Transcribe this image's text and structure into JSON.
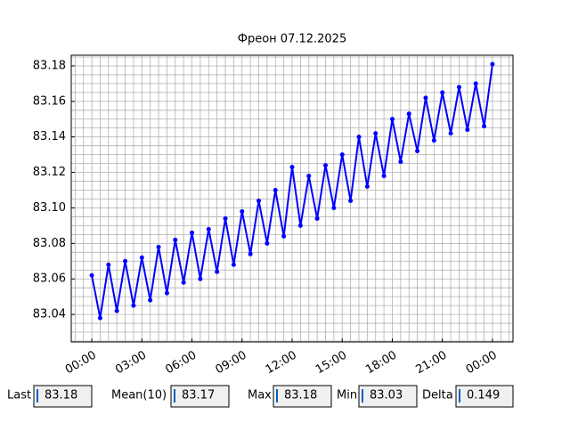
{
  "chart_data": {
    "type": "line",
    "title": "Фреон 07.12.2025",
    "x": [
      0,
      0.5,
      1,
      1.5,
      2,
      2.5,
      3,
      3.5,
      4,
      4.5,
      5,
      5.5,
      6,
      6.5,
      7,
      7.5,
      8,
      8.5,
      9,
      9.5,
      10,
      10.5,
      11,
      11.5,
      12,
      12.5,
      13,
      13.5,
      14,
      14.5,
      15,
      15.5,
      16,
      16.5,
      17,
      17.5,
      18,
      18.5,
      19,
      19.5,
      20,
      20.5,
      21,
      21.5,
      22,
      22.5,
      23,
      23.5,
      24
    ],
    "series": [
      {
        "color": "#0000ff",
        "values": [
          83.062,
          83.038,
          83.068,
          83.042,
          83.07,
          83.045,
          83.072,
          83.048,
          83.078,
          83.052,
          83.082,
          83.058,
          83.086,
          83.06,
          83.088,
          83.064,
          83.094,
          83.068,
          83.098,
          83.074,
          83.104,
          83.08,
          83.11,
          83.084,
          83.123,
          83.09,
          83.118,
          83.094,
          83.124,
          83.1,
          83.13,
          83.104,
          83.14,
          83.112,
          83.142,
          83.118,
          83.15,
          83.126,
          83.153,
          83.132,
          83.162,
          83.138,
          83.165,
          83.142,
          83.168,
          83.144,
          83.17,
          83.146,
          83.181
        ]
      }
    ],
    "xlim": [
      -1.23,
      25.23
    ],
    "ylim": [
      83.0245,
      83.186
    ],
    "xticks": [
      {
        "value": 0,
        "label": "00:00"
      },
      {
        "value": 3,
        "label": "03:00"
      },
      {
        "value": 6,
        "label": "06:00"
      },
      {
        "value": 9,
        "label": "09:00"
      },
      {
        "value": 12,
        "label": "12:00"
      },
      {
        "value": 15,
        "label": "15:00"
      },
      {
        "value": 18,
        "label": "18:00"
      },
      {
        "value": 21,
        "label": "21:00"
      },
      {
        "value": 24,
        "label": "00:00"
      }
    ],
    "yticks": [
      {
        "value": 83.04,
        "label": "83.04"
      },
      {
        "value": 83.06,
        "label": "83.06"
      },
      {
        "value": 83.08,
        "label": "83.08"
      },
      {
        "value": 83.1,
        "label": "83.10"
      },
      {
        "value": 83.12,
        "label": "83.12"
      },
      {
        "value": 83.14,
        "label": "83.14"
      },
      {
        "value": 83.16,
        "label": "83.16"
      },
      {
        "value": 83.18,
        "label": "83.18"
      }
    ],
    "xminorticks": [
      -1,
      -0.5,
      0,
      0.5,
      1,
      1.5,
      2,
      2.5,
      3,
      3.5,
      4,
      4.5,
      5,
      5.5,
      6,
      6.5,
      7,
      7.5,
      8,
      8.5,
      9,
      9.5,
      10,
      10.5,
      11,
      11.5,
      12,
      12.5,
      13,
      13.5,
      14,
      14.5,
      15,
      15.5,
      16,
      16.5,
      17,
      17.5,
      18,
      18.5,
      19,
      19.5,
      20,
      20.5,
      21,
      21.5,
      22,
      22.5,
      23,
      23.5,
      24,
      24.5,
      25
    ],
    "yminorticks": [
      83.025,
      83.03,
      83.035,
      83.04,
      83.045,
      83.05,
      83.055,
      83.06,
      83.065,
      83.07,
      83.075,
      83.08,
      83.085,
      83.09,
      83.095,
      83.1,
      83.105,
      83.11,
      83.115,
      83.12,
      83.125,
      83.13,
      83.135,
      83.14,
      83.145,
      83.15,
      83.155,
      83.16,
      83.165,
      83.17,
      83.175,
      83.18,
      83.185
    ],
    "grid": true
  },
  "fields": [
    {
      "label": "Last",
      "value": 83.18
    },
    {
      "label": "Mean(10)",
      "value": 83.17
    },
    {
      "label": "Max",
      "value": 83.18
    },
    {
      "label": "Min",
      "value": 83.03
    },
    {
      "label": "Delta",
      "value": 0.149
    }
  ]
}
